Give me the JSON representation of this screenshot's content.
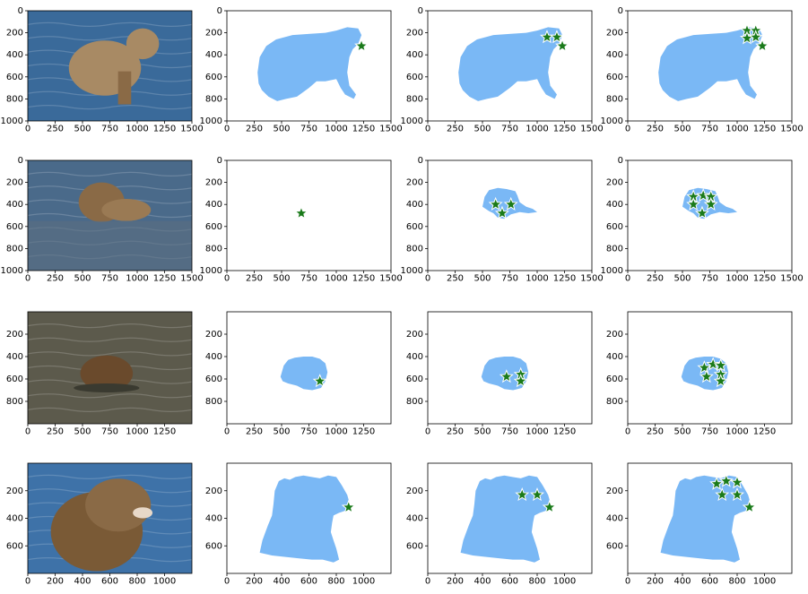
{
  "figure": {
    "colors": {
      "mask": "#7ab8f5",
      "star_fill": "#1a7a1a",
      "star_stroke": "#ffffff",
      "photo_water_1": "#3a6a9a",
      "photo_water_2": "#4a6a8a",
      "photo_water_3": "#5c5a4c",
      "photo_water_4": "#3e72a8",
      "bear_fur": "#8a6a46"
    },
    "rows": [
      {
        "image_label": "bear in rapids",
        "mask": "bear-body-side",
        "x_ticks": [
          "0",
          "250",
          "500",
          "750",
          "1000",
          "1250",
          "1500"
        ],
        "y_ticks": [
          "0",
          "200",
          "400",
          "600",
          "800",
          "1000"
        ],
        "x_range": [
          0,
          1500
        ],
        "y_range": [
          1000,
          0
        ],
        "panels": [
          {
            "kind": "image"
          },
          {
            "kind": "mask",
            "points": [
              [
                1230,
                320
              ]
            ]
          },
          {
            "kind": "mask",
            "points": [
              [
                1090,
                240
              ],
              [
                1180,
                240
              ],
              [
                1230,
                320
              ]
            ]
          },
          {
            "kind": "mask",
            "points": [
              [
                1090,
                180
              ],
              [
                1170,
                180
              ],
              [
                1090,
                250
              ],
              [
                1170,
                240
              ],
              [
                1230,
                320
              ]
            ]
          }
        ]
      },
      {
        "image_label": "bear swimming",
        "mask": "bear-swimming",
        "x_ticks": [
          "0",
          "250",
          "500",
          "750",
          "1000",
          "1250",
          "1500"
        ],
        "y_ticks": [
          "0",
          "200",
          "400",
          "600",
          "800",
          "1000"
        ],
        "x_range": [
          0,
          1500
        ],
        "y_range": [
          1000,
          0
        ],
        "panels": [
          {
            "kind": "image"
          },
          {
            "kind": "mask-empty",
            "points": [
              [
                680,
                480
              ]
            ]
          },
          {
            "kind": "mask",
            "points": [
              [
                620,
                400
              ],
              [
                760,
                400
              ],
              [
                680,
                480
              ]
            ]
          },
          {
            "kind": "mask",
            "points": [
              [
                600,
                330
              ],
              [
                690,
                320
              ],
              [
                760,
                330
              ],
              [
                600,
                400
              ],
              [
                760,
                400
              ],
              [
                680,
                480
              ]
            ]
          }
        ]
      },
      {
        "image_label": "bear head in water",
        "mask": "bear-head",
        "x_ticks": [
          "0",
          "250",
          "500",
          "750",
          "1000",
          "1250"
        ],
        "y_ticks": [
          "200",
          "400",
          "600",
          "800"
        ],
        "x_range": [
          0,
          1500
        ],
        "y_range": [
          1000,
          0
        ],
        "panels": [
          {
            "kind": "image"
          },
          {
            "kind": "mask",
            "points": [
              [
                850,
                620
              ]
            ]
          },
          {
            "kind": "mask",
            "points": [
              [
                720,
                580
              ],
              [
                850,
                560
              ],
              [
                850,
                620
              ]
            ]
          },
          {
            "kind": "mask",
            "points": [
              [
                700,
                500
              ],
              [
                780,
                470
              ],
              [
                850,
                480
              ],
              [
                720,
                580
              ],
              [
                850,
                560
              ],
              [
                850,
                620
              ]
            ]
          }
        ]
      },
      {
        "image_label": "bear upper body",
        "mask": "bear-upper-body",
        "x_ticks": [
          "0",
          "200",
          "400",
          "600",
          "800",
          "1000"
        ],
        "y_ticks": [
          "200",
          "400",
          "600"
        ],
        "x_range": [
          0,
          1200
        ],
        "y_range": [
          800,
          0
        ],
        "panels": [
          {
            "kind": "image"
          },
          {
            "kind": "mask",
            "points": [
              [
                890,
                320
              ]
            ]
          },
          {
            "kind": "mask",
            "points": [
              [
                690,
                230
              ],
              [
                800,
                230
              ],
              [
                890,
                320
              ]
            ]
          },
          {
            "kind": "mask",
            "points": [
              [
                650,
                150
              ],
              [
                720,
                130
              ],
              [
                800,
                140
              ],
              [
                690,
                230
              ],
              [
                800,
                230
              ],
              [
                890,
                320
              ]
            ]
          }
        ]
      }
    ]
  }
}
